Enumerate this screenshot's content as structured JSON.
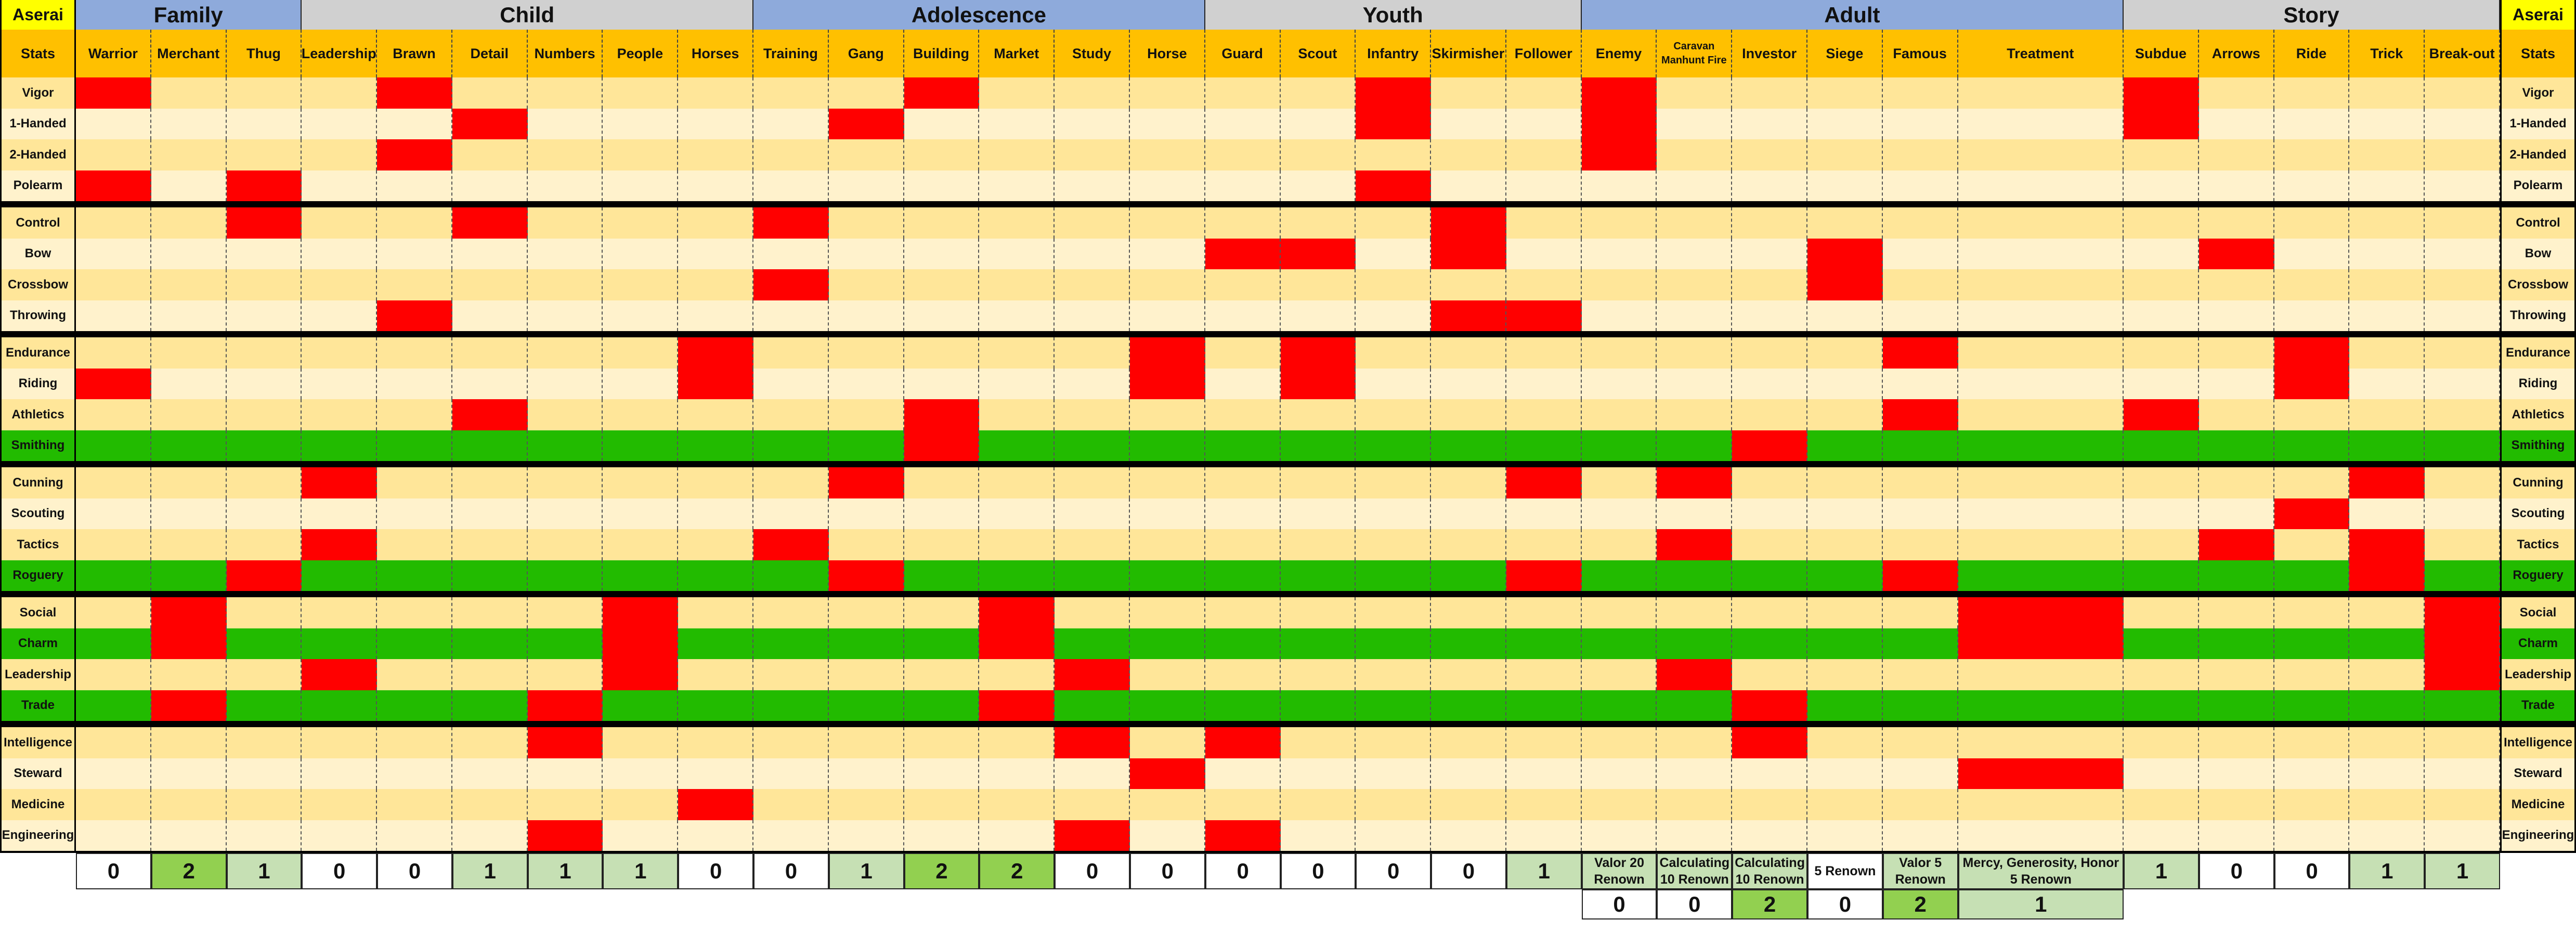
{
  "corner_label": "Aserai",
  "stats_label": "Stats",
  "colors": {
    "group_blue": "#8eaadb",
    "group_gray": "#d0d0d0",
    "corner_yellow": "#ffff00",
    "sub_orange": "#ffc000",
    "row_light": "#fff2cc",
    "row_dark": "#ffe699",
    "highlight_green": "#22bb00",
    "mark_red": "#ff0000",
    "foot_light_green": "#c6e0b4",
    "foot_green": "#92d050"
  },
  "groups": [
    {
      "name": "Family",
      "span": 3,
      "shade": "blue"
    },
    {
      "name": "Child",
      "span": 6,
      "shade": "gray"
    },
    {
      "name": "Adolescence",
      "span": 6,
      "shade": "blue"
    },
    {
      "name": "Youth",
      "span": 5,
      "shade": "gray"
    },
    {
      "name": "Adult",
      "span": 6,
      "shade": "blue"
    },
    {
      "name": "Story",
      "span": 5,
      "shade": "gray"
    }
  ],
  "columns": [
    "Warrior",
    "Merchant",
    "Thug",
    "Leadership",
    "Brawn",
    "Detail",
    "Numbers",
    "People",
    "Horses",
    "Training",
    "Gang",
    "Building",
    "Market",
    "Study",
    "Horse",
    "Guard",
    "Scout",
    "Infantry",
    "Skirmisher",
    "Follower",
    "Enemy",
    "Caravan Manhunt Fire",
    "Investor",
    "Siege",
    "Famous",
    "Treatment",
    "Subdue",
    "Arrows",
    "Ride",
    "Trick",
    "Break-out"
  ],
  "attribute_groups": [
    {
      "rows": [
        {
          "name": "Vigor",
          "marks": [
            0,
            4,
            11,
            17,
            20,
            26
          ]
        },
        {
          "name": "1-Handed",
          "marks": [
            5,
            10,
            17,
            20,
            26
          ]
        },
        {
          "name": "2-Handed",
          "marks": [
            4,
            20
          ]
        },
        {
          "name": "Polearm",
          "marks": [
            0,
            2,
            17
          ]
        }
      ]
    },
    {
      "rows": [
        {
          "name": "Control",
          "marks": [
            2,
            5,
            9,
            18
          ]
        },
        {
          "name": "Bow",
          "marks": [
            15,
            16,
            18,
            23,
            27
          ]
        },
        {
          "name": "Crossbow",
          "marks": [
            9,
            23
          ]
        },
        {
          "name": "Throwing",
          "marks": [
            4,
            18,
            19
          ]
        }
      ]
    },
    {
      "rows": [
        {
          "name": "Endurance",
          "marks": [
            8,
            14,
            16,
            24,
            28
          ]
        },
        {
          "name": "Riding",
          "marks": [
            0,
            8,
            14,
            16,
            28
          ]
        },
        {
          "name": "Athletics",
          "marks": [
            5,
            11,
            24,
            26
          ]
        },
        {
          "name": "Smithing",
          "marks": [
            11,
            22
          ],
          "green": true
        }
      ]
    },
    {
      "rows": [
        {
          "name": "Cunning",
          "marks": [
            3,
            10,
            19,
            21,
            29
          ]
        },
        {
          "name": "Scouting",
          "marks": [
            28
          ]
        },
        {
          "name": "Tactics",
          "marks": [
            3,
            9,
            21,
            27,
            29
          ]
        },
        {
          "name": "Roguery",
          "marks": [
            2,
            10,
            19,
            24,
            29
          ],
          "green": true
        }
      ]
    },
    {
      "rows": [
        {
          "name": "Social",
          "marks": [
            1,
            7,
            12,
            25,
            30
          ]
        },
        {
          "name": "Charm",
          "marks": [
            1,
            7,
            12,
            25,
            30
          ],
          "green": true
        },
        {
          "name": "Leadership",
          "marks": [
            3,
            7,
            13,
            21,
            30
          ]
        },
        {
          "name": "Trade",
          "marks": [
            1,
            6,
            12,
            22
          ],
          "green": true
        }
      ]
    },
    {
      "rows": [
        {
          "name": "Intelligence",
          "marks": [
            6,
            13,
            15,
            22
          ]
        },
        {
          "name": "Steward",
          "marks": [
            14,
            25
          ]
        },
        {
          "name": "Medicine",
          "marks": [
            8
          ]
        },
        {
          "name": "Engineering",
          "marks": [
            6,
            13,
            15
          ]
        }
      ]
    }
  ],
  "footer": [
    {
      "text": "0",
      "shade": "white"
    },
    {
      "text": "2",
      "shade": "green"
    },
    {
      "text": "1",
      "shade": "light"
    },
    {
      "text": "0",
      "shade": "white"
    },
    {
      "text": "0",
      "shade": "white"
    },
    {
      "text": "1",
      "shade": "light"
    },
    {
      "text": "1",
      "shade": "light"
    },
    {
      "text": "1",
      "shade": "light"
    },
    {
      "text": "0",
      "shade": "white"
    },
    {
      "text": "0",
      "shade": "white"
    },
    {
      "text": "1",
      "shade": "light"
    },
    {
      "text": "2",
      "shade": "green"
    },
    {
      "text": "2",
      "shade": "green"
    },
    {
      "text": "0",
      "shade": "white"
    },
    {
      "text": "0",
      "shade": "white"
    },
    {
      "text": "0",
      "shade": "white"
    },
    {
      "text": "0",
      "shade": "white"
    },
    {
      "text": "0",
      "shade": "white"
    },
    {
      "text": "0",
      "shade": "white"
    },
    {
      "text": "1",
      "shade": "light"
    },
    {
      "text": "Valor 20 Renown",
      "shade": "light"
    },
    {
      "text": "Calculating 10 Renown",
      "shade": "light"
    },
    {
      "text": "Calculating 10 Renown",
      "shade": "light"
    },
    {
      "text": "5 Renown",
      "shade": "white"
    },
    {
      "text": "Valor 5 Renown",
      "shade": "light"
    },
    {
      "text": "Mercy, Generosity, Honor 5 Renown",
      "shade": "light"
    },
    {
      "text": "1",
      "shade": "light"
    },
    {
      "text": "0",
      "shade": "white"
    },
    {
      "text": "0",
      "shade": "white"
    },
    {
      "text": "1",
      "shade": "light"
    },
    {
      "text": "1",
      "shade": "light"
    }
  ],
  "adult_footer": [
    {
      "text": "0",
      "shade": "white"
    },
    {
      "text": "0",
      "shade": "white"
    },
    {
      "text": "2",
      "shade": "green"
    },
    {
      "text": "0",
      "shade": "white"
    },
    {
      "text": "2",
      "shade": "green"
    },
    {
      "text": "1",
      "shade": "light"
    }
  ]
}
